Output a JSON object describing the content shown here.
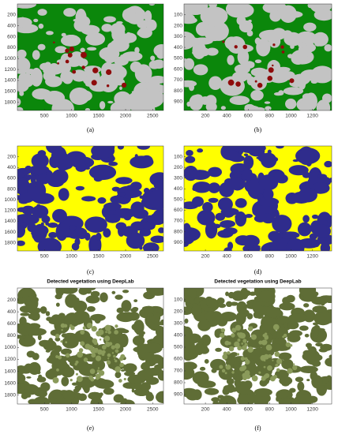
{
  "panels": [
    {
      "caption": "(a)",
      "xticks": [
        500,
        1000,
        1500,
        2000,
        2500
      ],
      "yticks": [
        200,
        400,
        600,
        800,
        1000,
        1200,
        1400,
        1600,
        1800
      ]
    },
    {
      "caption": "(b)",
      "xticks": [
        200,
        400,
        600,
        800,
        1000,
        1200
      ],
      "yticks": [
        100,
        200,
        300,
        400,
        500,
        600,
        700,
        800,
        900
      ]
    },
    {
      "caption": "(c)",
      "xticks": [
        500,
        1000,
        1500,
        2000,
        2500
      ],
      "yticks": [
        200,
        400,
        600,
        800,
        1000,
        1200,
        1400,
        1600,
        1800
      ]
    },
    {
      "caption": "(d)",
      "xticks": [
        200,
        400,
        600,
        800,
        1000,
        1200
      ],
      "yticks": [
        100,
        200,
        300,
        400,
        500,
        600,
        700,
        800,
        900
      ]
    },
    {
      "title": "Detected vegetation using DeepLab",
      "caption": "(e)",
      "xticks": [
        500,
        1000,
        1500,
        2000,
        2500
      ],
      "yticks": [
        200,
        400,
        600,
        800,
        1000,
        1200,
        1400,
        1600,
        1800
      ]
    },
    {
      "title": "Detected vegetation using DeepLab",
      "caption": "(f)",
      "xticks": [
        200,
        400,
        600,
        800,
        1000,
        1200
      ],
      "yticks": [
        100,
        200,
        300,
        400,
        500,
        600,
        700,
        800,
        900
      ]
    }
  ]
}
